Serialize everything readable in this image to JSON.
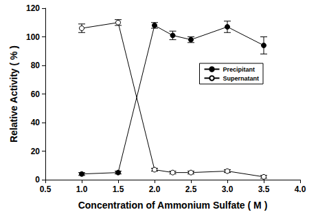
{
  "chart_data": {
    "type": "line",
    "x_label": "Concentration of Ammonium Sulfate ( M )",
    "y_label": "Relative Activity ( % )",
    "xlim": [
      0.5,
      4.0
    ],
    "xticks": [
      {
        "value": 0.5,
        "label": "0.5"
      },
      {
        "value": 1,
        "label": "1.0"
      },
      {
        "value": 1.5,
        "label": "1.5"
      },
      {
        "value": 2,
        "label": "2.0"
      },
      {
        "value": 2.5,
        "label": "2.5"
      },
      {
        "value": 3,
        "label": "3.0"
      },
      {
        "value": 3.5,
        "label": "3.5"
      },
      {
        "value": 4,
        "label": "4.0"
      }
    ],
    "ylim": [
      0,
      120
    ],
    "yticks": [
      0,
      20,
      40,
      60,
      80,
      100,
      120
    ],
    "grid": false,
    "legend": "right",
    "x": [
      1.0,
      1.5,
      2.0,
      2.25,
      2.5,
      3.0,
      3.5
    ],
    "series": [
      {
        "name": "Precipitant",
        "color": "#000000",
        "marker": "circle",
        "values": [
          4,
          5,
          108,
          101,
          98,
          107,
          94
        ],
        "errors": [
          1,
          1,
          2,
          3,
          2,
          4,
          6
        ]
      },
      {
        "name": "Supernatant",
        "color": "#000000",
        "marker": "open_circle",
        "values": [
          106,
          110,
          7,
          5,
          5,
          6,
          2
        ],
        "errors": [
          3,
          2,
          1,
          1,
          1,
          1,
          1
        ]
      }
    ]
  }
}
